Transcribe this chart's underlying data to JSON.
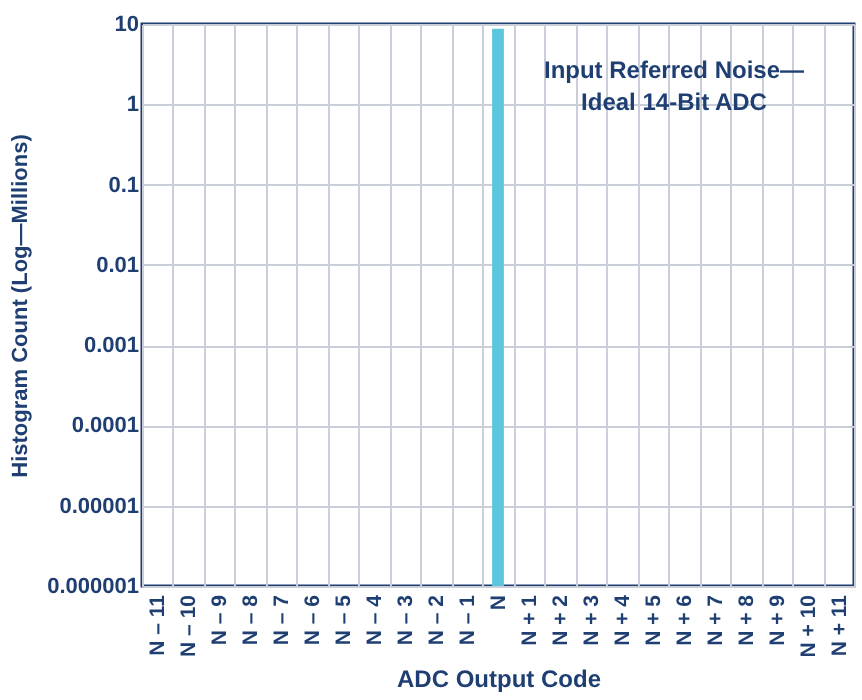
{
  "chart_data": {
    "type": "bar",
    "xlabel": "ADC Output Code",
    "ylabel": "Histogram Count (Log—Millions)",
    "annotations": [
      "Input Referred Noise—\nIdeal 14-Bit ADC"
    ],
    "categories": [
      "N – 11",
      "N – 10",
      "N – 9",
      "N – 8",
      "N – 7",
      "N – 6",
      "N – 5",
      "N – 4",
      "N – 3",
      "N – 2",
      "N – 1",
      "N",
      "N + 1",
      "N + 2",
      "N + 3",
      "N + 4",
      "N + 5",
      "N + 6",
      "N + 7",
      "N + 8",
      "N + 9",
      "N + 10",
      "N + 11"
    ],
    "values": [
      null,
      null,
      null,
      null,
      null,
      null,
      null,
      null,
      null,
      null,
      null,
      8.7,
      null,
      null,
      null,
      null,
      null,
      null,
      null,
      null,
      null,
      null,
      null
    ],
    "color": "#5cc6dc",
    "log": true,
    "ylim": [
      1e-06,
      10
    ],
    "yticks": [
      {
        "value": 1e-06,
        "label": "0.000001"
      },
      {
        "value": 1e-05,
        "label": "0.00001"
      },
      0.0001,
      0.001,
      0.01,
      0.1,
      1,
      10
    ],
    "grid": true
  }
}
